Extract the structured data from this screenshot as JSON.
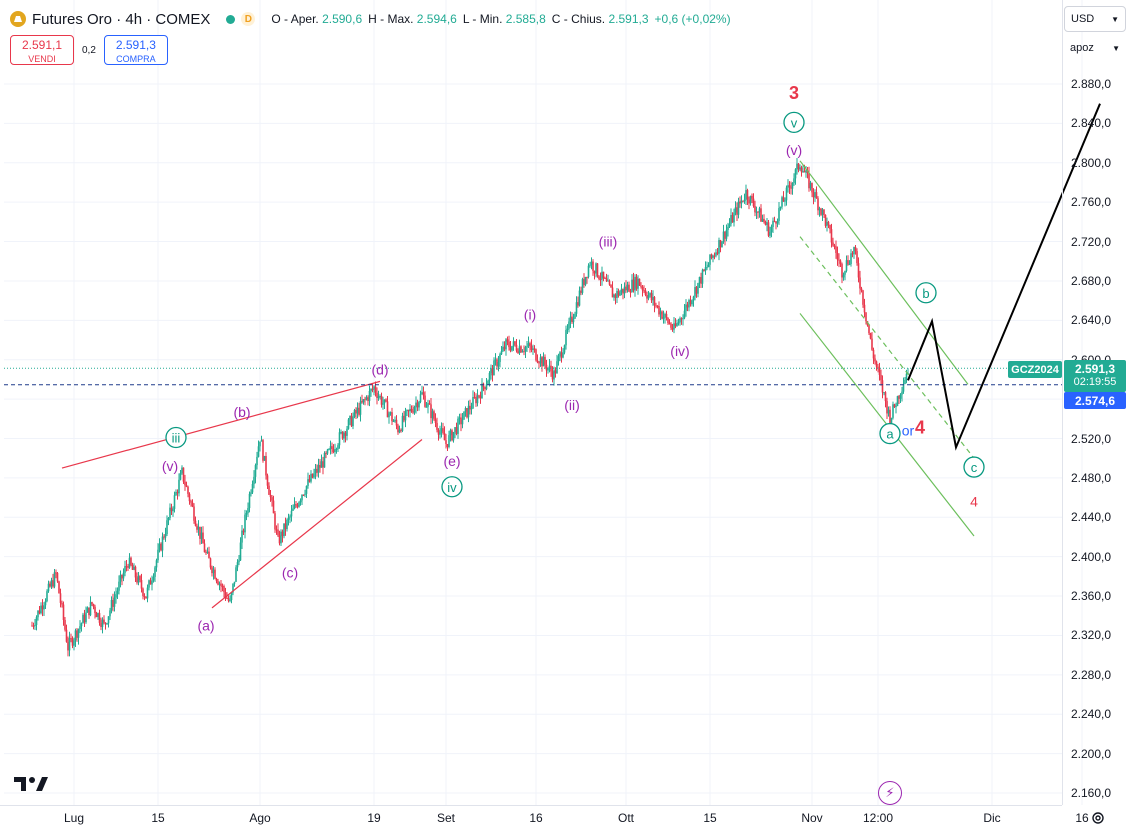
{
  "header": {
    "title": "Futures Oro · 4h · COMEX",
    "badge": "D",
    "ohlc": [
      {
        "label": "O - Aper.",
        "value": "2.590,6"
      },
      {
        "label": "H - Max.",
        "value": "2.594,6"
      },
      {
        "label": "L - Min.",
        "value": "2.585,8"
      },
      {
        "label": "C - Chius.",
        "value": "2.591,3"
      },
      {
        "label": "",
        "value": "+0,6 (+0,02%)"
      }
    ]
  },
  "trade": {
    "sell_price": "2.591,1",
    "sell_label": "VENDI",
    "spread": "0,2",
    "buy_price": "2.591,3",
    "buy_label": "COMPRA"
  },
  "scale": {
    "currency": "USD",
    "mode": "apoz"
  },
  "price_tags": {
    "symbol": "GCZ2024",
    "last": "2.591,3",
    "countdown": "02:19:55",
    "line": "2.574,6"
  },
  "colors": {
    "up": "#22ab94",
    "down": "#e8374b",
    "wave_purple": "#9c27b0",
    "wave_teal": "#089981",
    "wave_red": "#e8374b",
    "channel_green": "#6cbf5c",
    "wedge_red": "#e8374b",
    "projection": "#000000",
    "last_line": "#22ab94",
    "marker_line": "#2962ff"
  },
  "chart_data": {
    "type": "candlestick",
    "y_ticks": [
      "2.880,0",
      "2.840,0",
      "2.800,0",
      "2.760,0",
      "2.720,0",
      "2.680,0",
      "2.640,0",
      "2.600,0",
      "2.560,0",
      "2.520,0",
      "2.480,0",
      "2.440,0",
      "2.400,0",
      "2.360,0",
      "2.320,0",
      "2.280,0",
      "2.240,0",
      "2.200,0",
      "2.160,0"
    ],
    "y_tick_values": [
      2880,
      2840,
      2800,
      2760,
      2720,
      2680,
      2640,
      2600,
      2560,
      2520,
      2480,
      2440,
      2400,
      2360,
      2320,
      2280,
      2240,
      2200,
      2160
    ],
    "ylim": [
      2148,
      2930
    ],
    "x_ticks": [
      "Lug",
      "15",
      "Ago",
      "19",
      "Set",
      "16",
      "Ott",
      "15",
      "Nov",
      "12:00",
      "Dic",
      "16"
    ],
    "x_tick_days": [
      0,
      14,
      31,
      50,
      62,
      77,
      92,
      106,
      123,
      134,
      153,
      168
    ],
    "xlim_days": [
      -7,
      171
    ],
    "last_price": 2591.3,
    "marker_line_price": 2574.6,
    "swing_points": [
      {
        "day": -7,
        "price": 2330
      },
      {
        "day": -3,
        "price": 2382
      },
      {
        "day": -1,
        "price": 2308
      },
      {
        "day": 3,
        "price": 2352
      },
      {
        "day": 5,
        "price": 2330
      },
      {
        "day": 9,
        "price": 2395
      },
      {
        "day": 12,
        "price": 2360
      },
      {
        "day": 18,
        "price": 2485
      },
      {
        "day": 22,
        "price": 2402
      },
      {
        "day": 26,
        "price": 2352
      },
      {
        "day": 31,
        "price": 2522
      },
      {
        "day": 34,
        "price": 2415
      },
      {
        "day": 38,
        "price": 2465
      },
      {
        "day": 50,
        "price": 2572
      },
      {
        "day": 54,
        "price": 2530
      },
      {
        "day": 58,
        "price": 2565
      },
      {
        "day": 62,
        "price": 2515
      },
      {
        "day": 68,
        "price": 2570
      },
      {
        "day": 72,
        "price": 2615
      },
      {
        "day": 76,
        "price": 2612
      },
      {
        "day": 80,
        "price": 2585
      },
      {
        "day": 86,
        "price": 2700
      },
      {
        "day": 90,
        "price": 2665
      },
      {
        "day": 94,
        "price": 2680
      },
      {
        "day": 100,
        "price": 2630
      },
      {
        "day": 106,
        "price": 2700
      },
      {
        "day": 112,
        "price": 2770
      },
      {
        "day": 116,
        "price": 2730
      },
      {
        "day": 121,
        "price": 2800
      },
      {
        "day": 125,
        "price": 2745
      },
      {
        "day": 128,
        "price": 2690
      },
      {
        "day": 130,
        "price": 2712
      },
      {
        "day": 133,
        "price": 2610
      },
      {
        "day": 136,
        "price": 2540
      },
      {
        "day": 139,
        "price": 2591
      }
    ],
    "wave_labels": [
      {
        "text": "(a)",
        "day": 22,
        "price": 2330,
        "color": "purple"
      },
      {
        "text": "(b)",
        "day": 28,
        "price": 2547,
        "color": "purple"
      },
      {
        "text": "(c)",
        "day": 36,
        "price": 2384,
        "color": "purple"
      },
      {
        "text": "(d)",
        "day": 51,
        "price": 2590,
        "color": "purple"
      },
      {
        "text": "(e)",
        "day": 63,
        "price": 2497,
        "color": "purple"
      },
      {
        "text": "(v)",
        "day": 16,
        "price": 2492,
        "color": "purple"
      },
      {
        "text": "iii",
        "day": 17,
        "price": 2521,
        "color": "teal",
        "circled": true
      },
      {
        "text": "iv",
        "day": 63,
        "price": 2471,
        "color": "teal",
        "circled": true
      },
      {
        "text": "(i)",
        "day": 76,
        "price": 2646,
        "color": "purple"
      },
      {
        "text": "(ii)",
        "day": 83,
        "price": 2554,
        "color": "purple"
      },
      {
        "text": "(iii)",
        "day": 89,
        "price": 2720,
        "color": "purple"
      },
      {
        "text": "(iv)",
        "day": 101,
        "price": 2609,
        "color": "purple"
      },
      {
        "text": "(v)",
        "day": 120,
        "price": 2813,
        "color": "purple"
      },
      {
        "text": "v",
        "day": 120,
        "price": 2841,
        "color": "teal",
        "circled": true
      },
      {
        "text": "3",
        "day": 120,
        "price": 2870,
        "color": "red",
        "bold": true
      },
      {
        "text": "b",
        "day": 142,
        "price": 2668,
        "color": "teal",
        "circled": true
      },
      {
        "text": "a",
        "day": 136,
        "price": 2525,
        "color": "teal",
        "circled": true
      },
      {
        "text": "or",
        "day": 139,
        "price": 2528,
        "color": "blue"
      },
      {
        "text": "4",
        "day": 141,
        "price": 2530,
        "color": "red",
        "bold": true
      },
      {
        "text": "c",
        "day": 150,
        "price": 2491,
        "color": "teal",
        "circled": true
      },
      {
        "text": "4",
        "day": 150,
        "price": 2456,
        "color": "red"
      }
    ],
    "projection_path": [
      {
        "day": 139,
        "price": 2579
      },
      {
        "day": 143,
        "price": 2639
      },
      {
        "day": 147,
        "price": 2511
      },
      {
        "day": 171,
        "price": 2860
      }
    ],
    "wedge_lines": [
      [
        {
          "day": -2,
          "price": 2490
        },
        {
          "day": 51,
          "price": 2578
        }
      ],
      [
        {
          "day": 23,
          "price": 2348
        },
        {
          "day": 58,
          "price": 2519
        }
      ]
    ],
    "channel_lines": [
      [
        {
          "day": 121,
          "price": 2802
        },
        {
          "day": 149,
          "price": 2575
        }
      ],
      [
        {
          "day": 121,
          "price": 2647
        },
        {
          "day": 150,
          "price": 2421
        }
      ]
    ],
    "channel_dashed": [
      {
        "day": 121,
        "price": 2725
      },
      {
        "day": 150,
        "price": 2500
      }
    ]
  }
}
